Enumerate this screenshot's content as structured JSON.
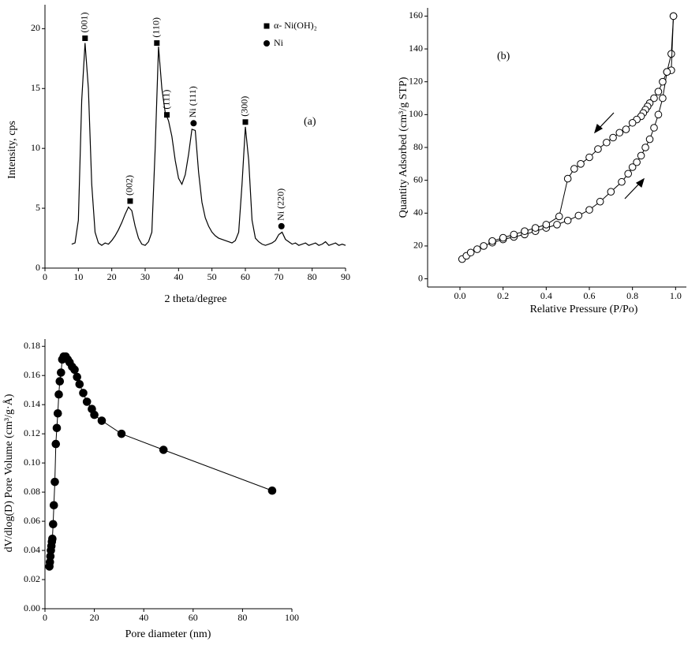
{
  "chart_data": [
    {
      "type": "line",
      "xlabel": "2 theta/degree",
      "ylabel": "Intensity, cps",
      "annotation": "(a)",
      "xlim": [
        0,
        90
      ],
      "ylim": [
        0,
        22
      ],
      "xticks": [
        0,
        10,
        20,
        30,
        40,
        50,
        60,
        70,
        80,
        90
      ],
      "yticks": [
        0,
        5,
        10,
        15,
        20
      ],
      "series": [
        {
          "color": "#000000",
          "x": [
            8,
            9,
            10,
            11,
            12,
            13,
            14,
            15,
            16,
            17,
            18,
            19,
            20,
            21,
            22,
            23,
            24,
            25,
            26,
            27,
            28,
            29,
            30,
            31,
            32,
            33,
            34,
            35,
            36,
            37,
            38,
            39,
            40,
            41,
            42,
            43,
            44,
            45,
            46,
            47,
            48,
            49,
            50,
            51,
            52,
            53,
            54,
            55,
            56,
            57,
            58,
            59,
            60,
            61,
            62,
            63,
            64,
            65,
            66,
            67,
            68,
            69,
            70,
            71,
            72,
            73,
            74,
            75,
            76,
            77,
            78,
            79,
            80,
            81,
            82,
            83,
            84,
            85,
            86,
            87,
            88,
            89,
            90
          ],
          "values": [
            2,
            2.1,
            4,
            14,
            18.8,
            15,
            7,
            3,
            2.1,
            1.9,
            2.1,
            2,
            2.3,
            2.7,
            3.2,
            3.8,
            4.5,
            5.1,
            4.8,
            3.5,
            2.5,
            2,
            1.9,
            2.2,
            3,
            10,
            18.5,
            15,
            13,
            12.3,
            11,
            9,
            7.5,
            7,
            7.8,
            9.5,
            11.6,
            11.5,
            8,
            5.5,
            4.2,
            3.5,
            3,
            2.7,
            2.5,
            2.4,
            2.3,
            2.2,
            2.1,
            2.3,
            3,
            7,
            11.8,
            9,
            4,
            2.5,
            2.2,
            2,
            1.9,
            2,
            2.1,
            2.3,
            2.8,
            3,
            2.4,
            2.2,
            2,
            2.1,
            1.9,
            2,
            2.1,
            1.9,
            2,
            2.1,
            1.9,
            2,
            2.2,
            1.9,
            2,
            2.1,
            1.9,
            2,
            1.9
          ]
        }
      ],
      "markers": [
        {
          "x": 12,
          "y": 19.2,
          "label": "(001)",
          "shape": "square"
        },
        {
          "x": 25.5,
          "y": 5.6,
          "label": "(002)",
          "shape": "square"
        },
        {
          "x": 33.5,
          "y": 18.8,
          "label": "(110)",
          "shape": "square"
        },
        {
          "x": 36.5,
          "y": 12.8,
          "label": "(111)",
          "shape": "square"
        },
        {
          "x": 44.5,
          "y": 12.1,
          "label": "Ni (111)",
          "shape": "circle"
        },
        {
          "x": 60,
          "y": 12.2,
          "label": "(300)",
          "shape": "square"
        },
        {
          "x": 70.8,
          "y": 3.5,
          "label": "Ni (220)",
          "shape": "circle"
        }
      ],
      "legend": [
        {
          "label": "α- Ni(OH)₂",
          "shape": "square"
        },
        {
          "label": "Ni",
          "shape": "circle"
        }
      ]
    },
    {
      "type": "scatter-line",
      "xlabel": "Relative Pressure (P/Po)",
      "ylabel": "Quantity Adsorbed (cm³/g STP)",
      "annotation": "(b)",
      "xlim": [
        -0.15,
        1.05
      ],
      "ylim": [
        -5,
        165
      ],
      "xticks": [
        {
          "value": 0,
          "label": "0.0"
        },
        0.2,
        0.4,
        0.6,
        0.8,
        {
          "value": 1,
          "label": "1.0"
        }
      ],
      "yticks": [
        0,
        20,
        40,
        60,
        80,
        100,
        120,
        140,
        160
      ],
      "series": [
        {
          "color": "#000000",
          "marker": "open-circle",
          "x": [
            0.01,
            0.03,
            0.05,
            0.08,
            0.11,
            0.15,
            0.2,
            0.25,
            0.3,
            0.35,
            0.4,
            0.45,
            0.5,
            0.55,
            0.6,
            0.65,
            0.7,
            0.75,
            0.78,
            0.8,
            0.82,
            0.84,
            0.86,
            0.88,
            0.9,
            0.92,
            0.94,
            0.96,
            0.98,
            0.99
          ],
          "values": [
            12,
            14,
            16,
            18,
            20,
            22,
            24,
            25.5,
            27,
            29,
            31,
            33,
            35.5,
            38.5,
            42,
            47,
            53,
            59,
            64,
            68,
            71,
            75,
            80,
            85,
            92,
            100,
            110,
            126,
            137,
            160
          ]
        },
        {
          "color": "#000000",
          "marker": "open-circle",
          "x": [
            0.99,
            0.98,
            0.96,
            0.94,
            0.92,
            0.9,
            0.88,
            0.87,
            0.86,
            0.85,
            0.84,
            0.82,
            0.8,
            0.77,
            0.74,
            0.71,
            0.68,
            0.64,
            0.6,
            0.56,
            0.53,
            0.5,
            0.46,
            0.4,
            0.35,
            0.3,
            0.25,
            0.2,
            0.15
          ],
          "values": [
            160,
            127,
            126,
            120,
            114,
            110,
            107,
            105,
            103,
            101,
            99,
            97,
            95,
            91,
            89,
            86,
            83,
            79,
            74,
            70,
            67,
            61,
            38,
            33,
            31,
            29,
            27,
            25,
            23
          ]
        }
      ]
    },
    {
      "type": "scatter-line",
      "xlabel": "Pore diameter (nm)",
      "ylabel": "dV/dlog(D) Pore Volume (cm³/g·Å)",
      "xlim": [
        0,
        100
      ],
      "ylim": [
        0,
        0.185
      ],
      "xticks": [
        0,
        20,
        40,
        60,
        80,
        100
      ],
      "yticks": [
        {
          "value": 0,
          "label": "0.00"
        },
        0.02,
        0.04,
        0.06,
        0.08,
        {
          "value": 0.1,
          "label": "0.10"
        },
        0.12,
        0.14,
        0.16,
        0.18
      ],
      "series": [
        {
          "color": "#000000",
          "marker": "filled-circle",
          "x": [
            1.8,
            2,
            2.2,
            2.4,
            2.6,
            2.8,
            3,
            3.3,
            3.6,
            4,
            4.4,
            4.8,
            5.2,
            5.6,
            6,
            6.5,
            7,
            7.6,
            8.4,
            9.2,
            10,
            11,
            12,
            13,
            14,
            15.5,
            17,
            19,
            20,
            23,
            31,
            48,
            92
          ],
          "values": [
            0.029,
            0.032,
            0.036,
            0.04,
            0.043,
            0.046,
            0.048,
            0.058,
            0.071,
            0.087,
            0.113,
            0.124,
            0.134,
            0.147,
            0.156,
            0.162,
            0.171,
            0.173,
            0.173,
            0.171,
            0.169,
            0.166,
            0.164,
            0.159,
            0.154,
            0.148,
            0.142,
            0.137,
            0.133,
            0.129,
            0.12,
            0.109,
            0.081
          ]
        }
      ]
    }
  ]
}
